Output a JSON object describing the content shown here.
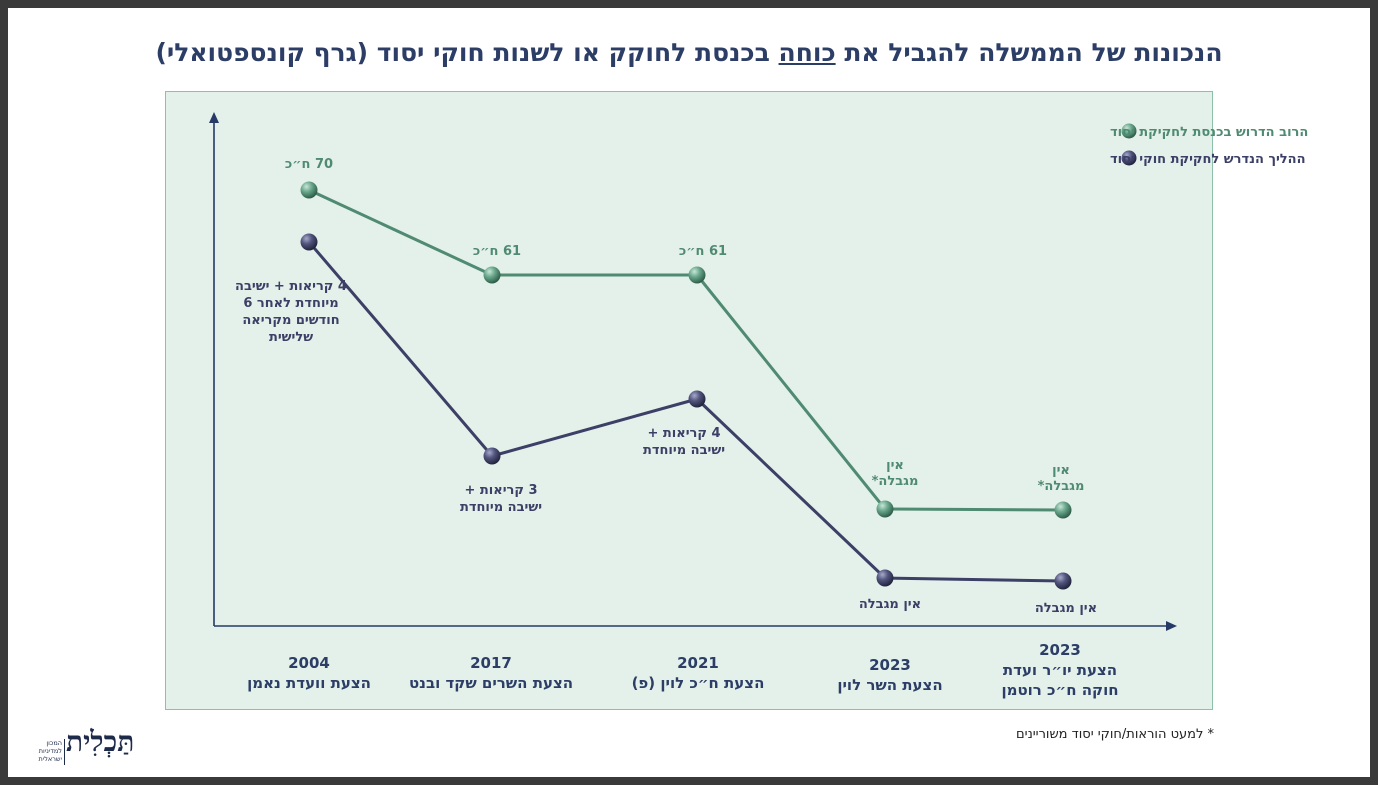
{
  "title": {
    "part1": "הנכונות של הממשלה להגביל את ",
    "underlined": "כוחה",
    "part2": " בכנסת לחוקק או לשנות חוקי יסוד (גרף קונספטואלי)"
  },
  "footnote": "* למעט הוראות/חוקי יסוד משוריינים",
  "logo": {
    "name": "תַּכְלִית",
    "sub": "המכון למדיניות ישראלית"
  },
  "colors": {
    "green": "#4f8a72",
    "navy": "#3c3f66",
    "axis": "#253a66",
    "text": "#2c3e66"
  },
  "chart_data": {
    "type": "line",
    "xlabel": "",
    "ylabel": "",
    "categories": [
      {
        "year": "2004",
        "label": "הצעת וועדת נאמן"
      },
      {
        "year": "2017",
        "label": "הצעת השרים שקד ובנט"
      },
      {
        "year": "2021",
        "label": "הצעת ח״כ לוין (פ)"
      },
      {
        "year": "2023",
        "label": "הצעת השר לוין"
      },
      {
        "year": "2023",
        "label": "הצעת יו״ר ועדת חוקה ח״כ רוטמן"
      }
    ],
    "legend": {
      "position": "top-right"
    },
    "series": [
      {
        "name": "הרוב הדרוש בכנסת לחקיקת יסוד",
        "color": "#4f8a72",
        "values": [
          70,
          61,
          61,
          0,
          0
        ],
        "labels": [
          "70 ח״כ",
          "61 ח״כ",
          "61 ח״כ",
          "אין\nמגבלה*",
          "אין\nמגבלה*"
        ]
      },
      {
        "name": "ההליך הנדרש לחקיקת חוקי יסוד",
        "color": "#3c3f66",
        "values": [
          4.5,
          1.5,
          2.5,
          0,
          0
        ],
        "labels": [
          "4 קריאות + ישיבה\nמיוחדת לאחר 6\nחודשים מקריאה\nשלישית",
          "3 קריאות +\nישיבה מיוחדת",
          "4 קריאות +\nישיבה מיוחדת",
          "אין מגבלה",
          "אין מגבלה"
        ]
      }
    ]
  }
}
